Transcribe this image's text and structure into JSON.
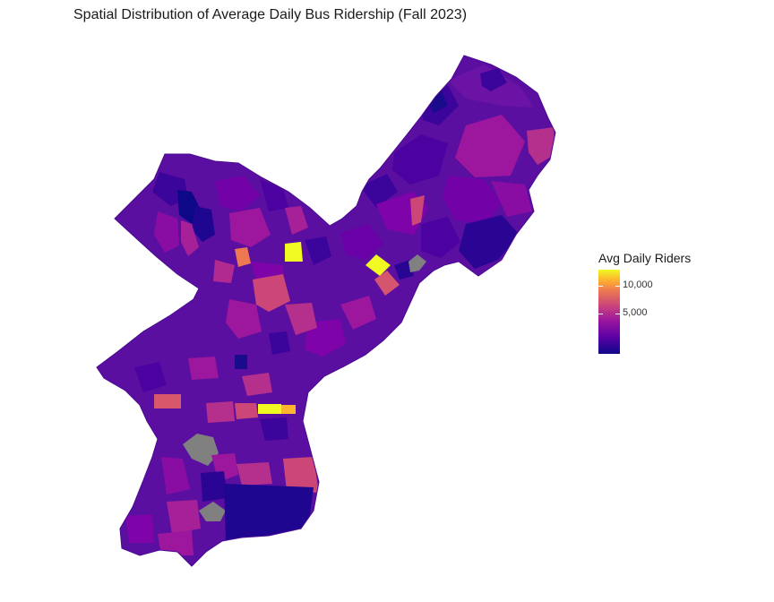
{
  "title": "Spatial Distribution of Average Daily Bus Ridership (Fall 2023)",
  "legend": {
    "title": "Avg Daily Riders",
    "ticks": [
      "10,000",
      "5,000"
    ],
    "tick_values": [
      10000,
      5000
    ],
    "range": [
      0,
      12000
    ],
    "colors": [
      "#0d0887",
      "#5c01a6",
      "#9c179e",
      "#cc4778",
      "#ed7953",
      "#fdb42f",
      "#f0f921"
    ]
  },
  "colors": {
    "missing": "#808080",
    "base": "#5b0fa0",
    "background": "#ffffff"
  }
}
